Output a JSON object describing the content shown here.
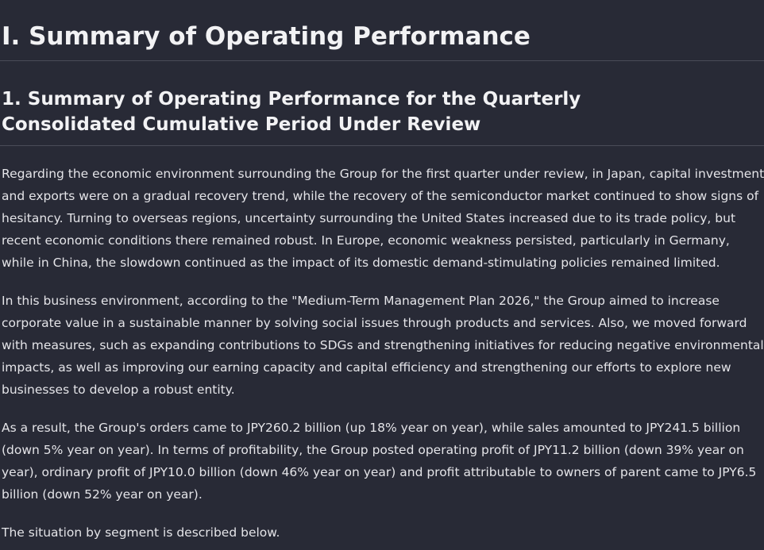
{
  "heading1": "I. Summary of Operating Performance",
  "heading2": "1. Summary of Operating Performance for the Quarterly Consolidated Cumulative Period Under Review",
  "paragraphs": [
    "Regarding the economic environment surrounding the Group for the first quarter under review, in Japan, capital investment and exports were on a gradual recovery trend, while the recovery of the semiconductor market continued to show signs of hesitancy. Turning to overseas regions, uncertainty surrounding the United States increased due to its trade policy, but recent economic conditions there remained robust. In Europe, economic weakness persisted, particularly in Germany, while in China, the slowdown continued as the impact of its domestic demand-stimulating policies remained limited.",
    "In this business environment, according to the \"Medium-Term Management Plan 2026,\" the Group aimed to increase corporate value in a sustainable manner by solving social issues through products and services. Also, we moved forward with measures, such as expanding contributions to SDGs and strengthening initiatives for reducing negative environmental impacts, as well as improving our earning capacity and capital efficiency and strengthening our efforts to explore new businesses to develop a robust entity.",
    "As a result, the Group's orders came to JPY260.2 billion (up 18% year on year), while sales amounted to JPY241.5 billion (down 5% year on year). In terms of profitability, the Group posted operating profit of JPY11.2 billion (down 39% year on year), ordinary profit of JPY10.0 billion (down 46% year on year) and profit attributable to owners of parent came to JPY6.5 billion (down 52% year on year).",
    "The situation by segment is described below."
  ]
}
